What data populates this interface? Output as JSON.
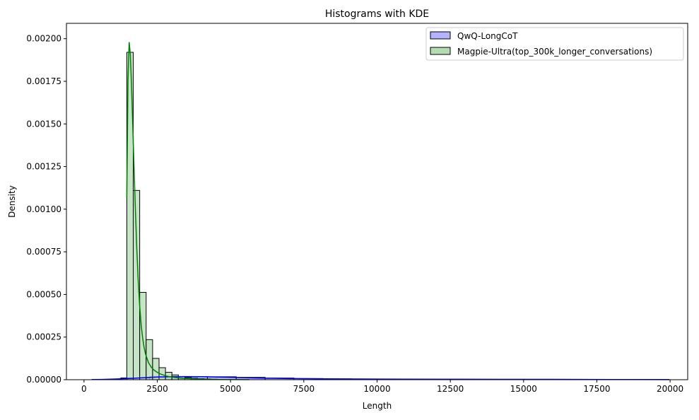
{
  "chart_data": {
    "type": "bar",
    "title": "Histograms with KDE",
    "xlabel": "Length",
    "ylabel": "Density",
    "xlim": [
      -600,
      20600
    ],
    "ylim": [
      0,
      0.00209
    ],
    "xticks": [
      0,
      2500,
      5000,
      7500,
      10000,
      12500,
      15000,
      17500,
      20000
    ],
    "xtick_labels": [
      "0",
      "2500",
      "5000",
      "7500",
      "10000",
      "12500",
      "15000",
      "17500",
      "20000"
    ],
    "yticks": [
      0,
      0.00025,
      0.0005,
      0.00075,
      0.001,
      0.00125,
      0.0015,
      0.00175,
      0.002
    ],
    "ytick_labels": [
      "0.00000",
      "0.00025",
      "0.00050",
      "0.00075",
      "0.00100",
      "0.00125",
      "0.00150",
      "0.00175",
      "0.00200"
    ],
    "legend_position": "top-right",
    "series": [
      {
        "name": "QwQ-LongCoT",
        "color": "#0000ff",
        "fill": "#b3b3ff",
        "bin_edges": [
          270,
          1255,
          2240,
          3225,
          4210,
          5195,
          6180,
          7165,
          8150,
          9135,
          10120,
          11105,
          12090,
          13075,
          14060,
          15045,
          16030,
          17015,
          18000,
          18985,
          19970
        ],
        "values": [
          1.6e-06,
          1.02e-05,
          1.75e-05,
          1.78e-05,
          1.72e-05,
          1.38e-05,
          9.8e-06,
          6.9e-06,
          5e-06,
          3.9e-06,
          3.3e-06,
          2.9e-06,
          2.6e-06,
          2.4e-06,
          2.3e-06,
          2.2e-06,
          2.1e-06,
          1.9e-06,
          1.6e-06,
          1.2e-06
        ],
        "kde": {
          "x": [
            270,
            600,
            1000,
            1500,
            2000,
            2500,
            3000,
            3500,
            4000,
            4500,
            5000,
            5500,
            6000,
            7000,
            8000,
            9000,
            10000,
            11000,
            12000,
            13000,
            14000,
            15000,
            16000,
            17000,
            18000,
            19000,
            19970
          ],
          "y": [
            8e-07,
            1.8e-06,
            3.5e-06,
            6.8e-06,
            1.12e-05,
            1.53e-05,
            1.76e-05,
            1.82e-05,
            1.75e-05,
            1.58e-05,
            1.35e-05,
            1.13e-05,
            9.4e-06,
            6.9e-06,
            5.2e-06,
            4.2e-06,
            3.5e-06,
            3e-06,
            2.7e-06,
            2.5e-06,
            2.3e-06,
            2.1e-06,
            1.9e-06,
            1.6e-06,
            1.3e-06,
            1e-06,
            6e-07
          ]
        }
      },
      {
        "name": "Magpie-Ultra(top_300k_longer_conversations)",
        "color": "#008000",
        "fill": "#b3dcb3",
        "bin_edges": [
          1460,
          1680,
          1900,
          2120,
          2340,
          2560,
          2780,
          3000,
          3220,
          3440,
          3660,
          3880,
          4100,
          4320,
          4540,
          4760,
          4980,
          5200,
          5420,
          5640
        ],
        "values": [
          0.00192,
          0.00111,
          0.000512,
          0.000235,
          0.000125,
          7.05e-05,
          4.35e-05,
          2.8e-05,
          1.85e-05,
          1.25e-05,
          8.5e-06,
          6e-06,
          4.5e-06,
          3e-06,
          2.2e-06,
          1.5e-06,
          1e-06,
          7e-07,
          5e-07
        ],
        "kde": {
          "x": [
            1460,
            1500,
            1540,
            1580,
            1620,
            1660,
            1700,
            1750,
            1800,
            1850,
            1900,
            1950,
            2000,
            2050,
            2100,
            2200,
            2300,
            2400,
            2500,
            2600,
            2800,
            3000,
            3200,
            3400,
            3700,
            4000,
            4500,
            5000,
            5640
          ],
          "y": [
            0.00107,
            0.00175,
            0.00198,
            0.00191,
            0.00173,
            0.00151,
            0.00128,
            0.00101,
            0.00077,
            0.00058,
            0.00043,
            0.00032,
            0.000245,
            0.00019,
            0.00015,
            0.0001,
            7.2e-05,
            5.5e-05,
            4.3e-05,
            3.4e-05,
            2.2e-05,
            1.5e-05,
            1.1e-05,
            8e-06,
            5.5e-06,
            3.5e-06,
            1.8e-06,
            9e-07,
            3e-07
          ]
        }
      }
    ]
  }
}
